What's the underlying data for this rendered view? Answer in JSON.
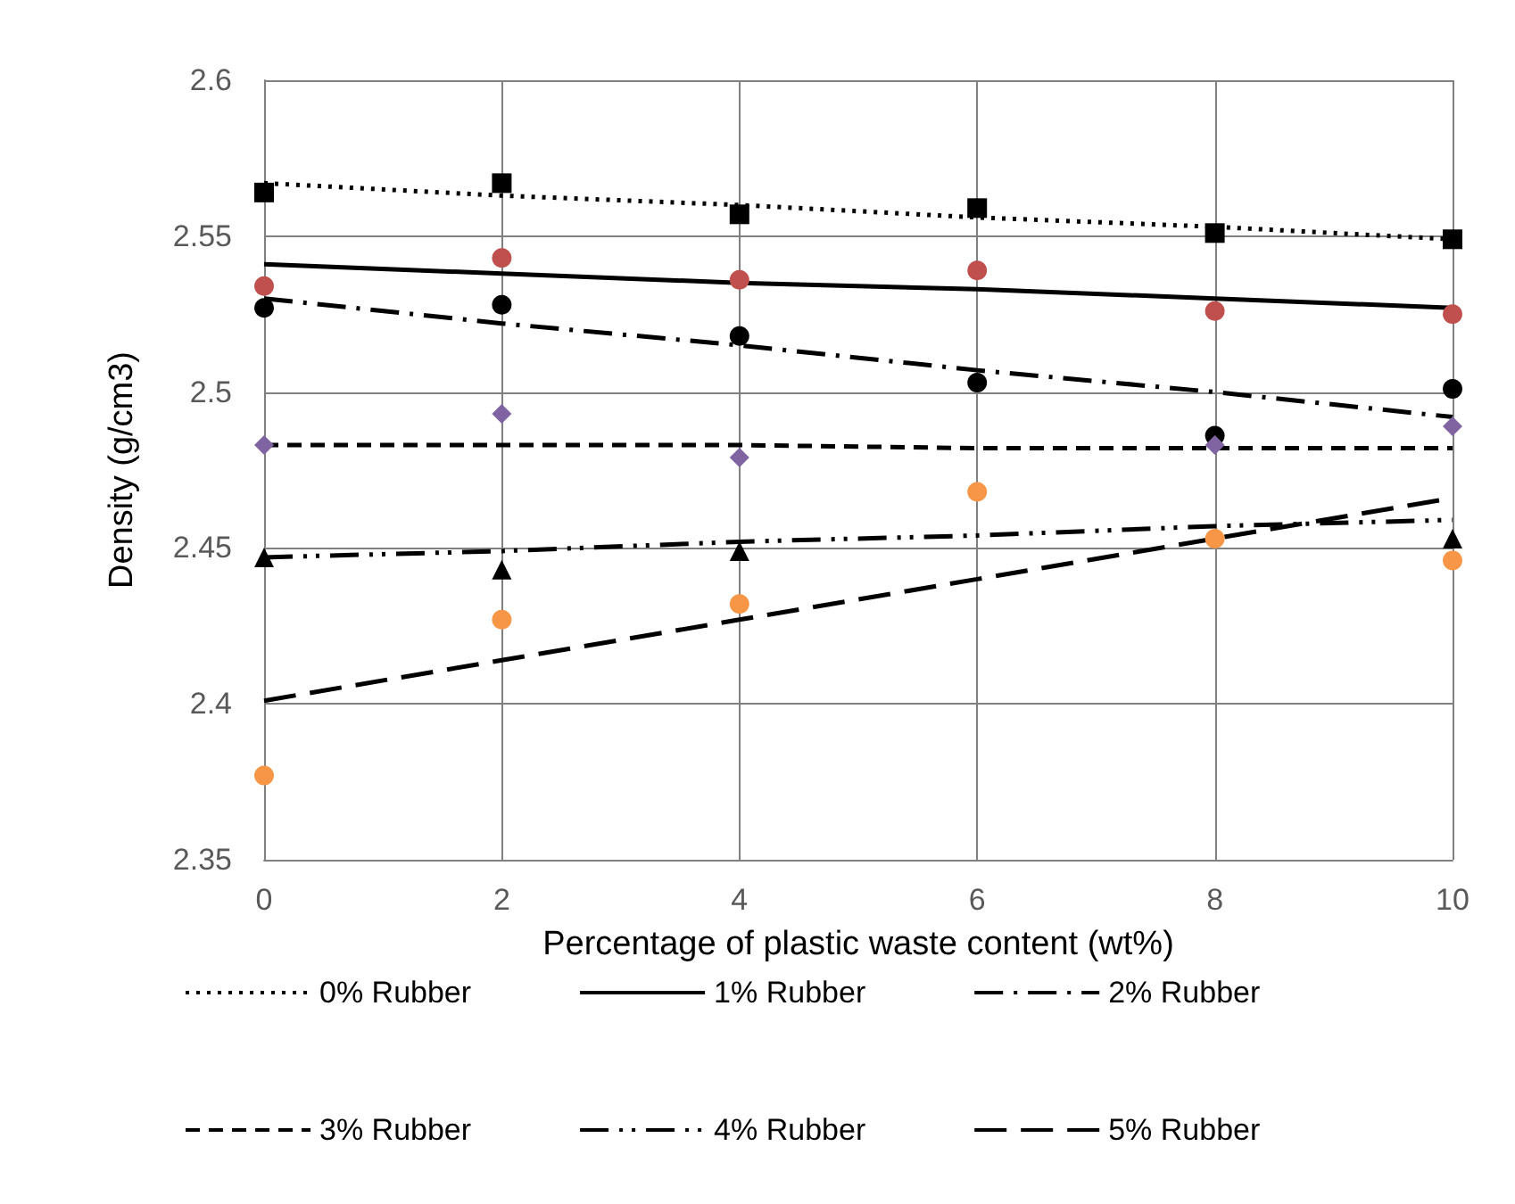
{
  "chart_data": {
    "type": "scatter",
    "xlabel": "Percentage of plastic waste content (wt%)",
    "ylabel": "Density (g/cm3)",
    "x": [
      0,
      2,
      4,
      6,
      8,
      10
    ],
    "xlim": [
      0,
      10
    ],
    "xticks": [
      0,
      2,
      4,
      6,
      8,
      10
    ],
    "ylim": [
      2.35,
      2.6
    ],
    "yticks": [
      2.35,
      2.4,
      2.45,
      2.5,
      2.55,
      2.6
    ],
    "grid": true,
    "legend": "bottom",
    "series": [
      {
        "color": "#000000",
        "marker": "square",
        "values": [
          2.564,
          2.567,
          2.557,
          2.559,
          2.551,
          2.549
        ]
      },
      {
        "color": "#c0504d",
        "marker": "circle",
        "values": [
          2.534,
          2.543,
          2.536,
          2.539,
          2.526,
          2.525
        ]
      },
      {
        "color": "#000000",
        "marker": "circle",
        "values": [
          2.527,
          2.528,
          2.518,
          2.503,
          2.486,
          2.501
        ]
      },
      {
        "color": "#8064a2",
        "marker": "diamond",
        "values": [
          2.483,
          2.493,
          2.479,
          null,
          2.483,
          2.489
        ]
      },
      {
        "color": "#000000",
        "marker": "triangle",
        "values": [
          2.447,
          2.443,
          2.449,
          null,
          null,
          2.453
        ]
      },
      {
        "color": "#f79646",
        "marker": "circle",
        "values": [
          2.377,
          2.427,
          2.432,
          2.468,
          2.453,
          2.446
        ]
      },
      {
        "type": "line",
        "name": "0% Rubber",
        "color": "#000000",
        "line_style": "dotted",
        "marker": "none",
        "values": [
          2.567,
          2.563,
          2.56,
          2.556,
          2.553,
          2.549
        ]
      },
      {
        "type": "line",
        "name": "1% Rubber",
        "color": "#000000",
        "line_style": "solid",
        "marker": "none",
        "values": [
          2.541,
          2.538,
          2.535,
          2.533,
          2.53,
          2.527
        ]
      },
      {
        "type": "line",
        "name": "2% Rubber",
        "color": "#000000",
        "line_style": "dashdot",
        "marker": "none",
        "values": [
          2.53,
          2.522,
          2.515,
          2.507,
          2.5,
          2.492
        ]
      },
      {
        "type": "line",
        "name": "3% Rubber",
        "color": "#000000",
        "line_style": "dashed",
        "marker": "none",
        "values": [
          2.483,
          2.483,
          2.483,
          2.482,
          2.482,
          2.482
        ]
      },
      {
        "type": "line",
        "name": "4% Rubber",
        "color": "#000000",
        "line_style": "dashdotdot",
        "marker": "none",
        "values": [
          2.447,
          2.449,
          2.452,
          2.454,
          2.457,
          2.459
        ]
      },
      {
        "type": "line",
        "name": "5% Rubber",
        "color": "#000000",
        "line_style": "longdash",
        "marker": "none",
        "values": [
          2.401,
          2.414,
          2.427,
          2.44,
          2.453,
          2.466
        ]
      }
    ]
  }
}
